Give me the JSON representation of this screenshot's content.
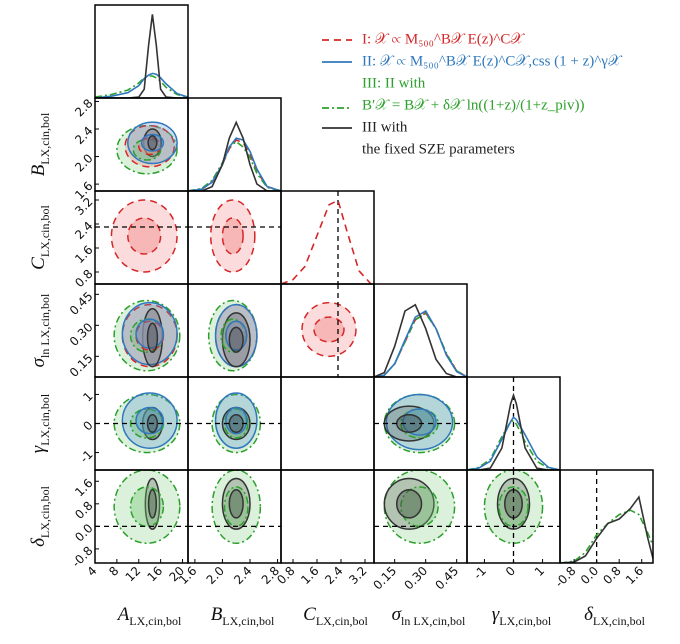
{
  "chart_data": {
    "type": "corner",
    "series": [
      {
        "name": "I: 𝒳 ∝ M₅₀₀^B𝒳 E(z)^C𝒳",
        "color": "#d62728",
        "dash": "7,5"
      },
      {
        "name": "II: 𝒳 ∝ M₅₀₀^B𝒳 E(z)^C𝒳,css (1 + z)^γ𝒳",
        "color": "#2f78bd",
        "dash": "none"
      },
      {
        "name": "III: II with",
        "relation": "B′𝒳 = B𝒳 + δ𝒳 ln((1+z)/(1+z_piv))",
        "color": "#2ca02c",
        "dash": "7,3,2,3"
      },
      {
        "name": [
          "III with",
          "the fixed SZE parameters"
        ],
        "color": "#333333",
        "dash": "none"
      }
    ],
    "params": [
      {
        "symbol": "A",
        "sub": "LX,cin,bol",
        "lim": [
          4,
          21
        ],
        "ticks": [
          4,
          8,
          12,
          16,
          20
        ],
        "reference": null
      },
      {
        "symbol": "B",
        "sub": "LX,cin,bol",
        "lim": [
          1.5,
          2.85
        ],
        "ticks": [
          1.6,
          {
            "value": 2,
            "label": "2.0"
          },
          2.4,
          2.8
        ],
        "reference": null
      },
      {
        "symbol": "C",
        "sub": "LX,cin,bol",
        "lim": [
          0.4,
          3.5
        ],
        "ticks": [
          0.8,
          1.6,
          2.4,
          3.2
        ],
        "reference": 2.3
      },
      {
        "symbol": "σ",
        "sub": "ln LX,cin,bol",
        "lim": [
          0.05,
          0.5
        ],
        "ticks": [
          0.15,
          {
            "value": 0.3,
            "label": "0.30"
          },
          0.45
        ],
        "reference": null
      },
      {
        "symbol": "γ",
        "sub": "LX,cin,bol",
        "lim": [
          -1.6,
          1.6
        ],
        "ticks": [
          -1,
          0,
          1
        ],
        "reference": 0
      },
      {
        "symbol": "δ",
        "sub": "LX,cin,bol",
        "lim": [
          -1.3,
          2.0
        ],
        "ticks": [
          -0.8,
          {
            "value": 0,
            "label": "0.0"
          },
          0.8,
          1.6
        ],
        "reference": 0
      }
    ],
    "diagonals": [
      {
        "grid": [
          4,
          7,
          10,
          12,
          13,
          13.8,
          14.5,
          15.2,
          16,
          17,
          19,
          21
        ],
        "curves": [
          {
            "series": 2,
            "values": [
              0.01,
              0.04,
              0.09,
              0.17,
              0.23,
              0.25,
              0.25,
              0.23,
              0.19,
              0.12,
              0.04,
              0.01
            ]
          },
          {
            "series": 1,
            "values": [
              0,
              0.02,
              0.06,
              0.14,
              0.22,
              0.26,
              0.28,
              0.27,
              0.23,
              0.16,
              0.05,
              0.01
            ]
          },
          {
            "series": 3,
            "values": [
              0,
              0,
              0,
              0.01,
              0.1,
              0.6,
              0.95,
              0.6,
              0.1,
              0.01,
              0,
              0
            ]
          }
        ]
      },
      {
        "grid": [
          1.5,
          1.7,
          1.85,
          2.0,
          2.1,
          2.2,
          2.3,
          2.4,
          2.5,
          2.65,
          2.85
        ],
        "curves": [
          {
            "series": 0,
            "values": [
              0,
              0.02,
              0.1,
              0.3,
              0.48,
              0.58,
              0.55,
              0.42,
              0.22,
              0.05,
              0
            ]
          },
          {
            "series": 2,
            "values": [
              0,
              0.03,
              0.12,
              0.32,
              0.5,
              0.56,
              0.5,
              0.38,
              0.2,
              0.04,
              0
            ]
          },
          {
            "series": 1,
            "values": [
              0,
              0.02,
              0.1,
              0.3,
              0.5,
              0.6,
              0.58,
              0.45,
              0.25,
              0.05,
              0
            ]
          },
          {
            "series": 3,
            "values": [
              0,
              0,
              0.05,
              0.3,
              0.6,
              0.78,
              0.6,
              0.3,
              0.08,
              0,
              0
            ]
          }
        ]
      },
      {
        "grid": [
          0.4,
          0.8,
          1.2,
          1.6,
          2.0,
          2.3,
          2.6,
          3.0,
          3.4
        ],
        "curves": [
          {
            "series": 0,
            "values": [
              0,
              0.05,
              0.2,
              0.55,
              0.9,
              0.95,
              0.6,
              0.15,
              0
            ]
          }
        ]
      },
      {
        "grid": [
          0.05,
          0.1,
          0.15,
          0.2,
          0.25,
          0.3,
          0.35,
          0.4,
          0.45,
          0.5
        ],
        "curves": [
          {
            "series": 0,
            "values": [
              0,
              0.02,
              0.15,
              0.4,
              0.65,
              0.73,
              0.55,
              0.26,
              0.07,
              0
            ]
          },
          {
            "series": 2,
            "values": [
              0,
              0.02,
              0.15,
              0.4,
              0.65,
              0.72,
              0.55,
              0.27,
              0.07,
              0
            ]
          },
          {
            "series": 1,
            "values": [
              0,
              0.02,
              0.15,
              0.42,
              0.68,
              0.75,
              0.55,
              0.25,
              0.06,
              0
            ]
          },
          {
            "series": 3,
            "values": [
              0,
              0.05,
              0.35,
              0.75,
              0.82,
              0.55,
              0.2,
              0.04,
              0,
              0
            ]
          }
        ]
      },
      {
        "grid": [
          -1.6,
          -1.2,
          -0.8,
          -0.4,
          -0.1,
          0,
          0.1,
          0.4,
          0.8,
          1.2,
          1.6
        ],
        "curves": [
          {
            "series": 2,
            "values": [
              0,
              0.03,
              0.12,
              0.38,
              0.55,
              0.56,
              0.52,
              0.32,
              0.1,
              0.02,
              0
            ]
          },
          {
            "series": 1,
            "values": [
              0,
              0.02,
              0.1,
              0.35,
              0.55,
              0.6,
              0.57,
              0.4,
              0.15,
              0.03,
              0
            ]
          },
          {
            "series": 3,
            "values": [
              0,
              0,
              0.02,
              0.25,
              0.75,
              0.85,
              0.75,
              0.25,
              0.02,
              0,
              0
            ]
          }
        ]
      },
      {
        "grid": [
          -1.3,
          -0.8,
          -0.4,
          0,
          0.4,
          0.8,
          1.2,
          1.5,
          1.8,
          2.0
        ],
        "curves": [
          {
            "series": 2,
            "values": [
              0,
              0.02,
              0.12,
              0.32,
              0.45,
              0.55,
              0.6,
              0.55,
              0.35,
              0.2
            ]
          },
          {
            "series": 3,
            "values": [
              0,
              0.01,
              0.08,
              0.28,
              0.45,
              0.5,
              0.62,
              0.75,
              0.3,
              0.05
            ]
          }
        ]
      }
    ],
    "contours": [
      {
        "x_param": 0,
        "y_param": 1,
        "blobs": [
          {
            "series": 2,
            "center": [
              13.5,
              2.1
            ],
            "r1": [
              2.5,
              0.15
            ],
            "r2": [
              5.5,
              0.35
            ]
          },
          {
            "series": 0,
            "center": [
              14,
              2.15
            ],
            "r1": [
              2,
              0.12
            ],
            "r2": [
              4.5,
              0.3
            ]
          },
          {
            "series": 1,
            "center": [
              14.5,
              2.2
            ],
            "r1": [
              2,
              0.12
            ],
            "r2": [
              4.5,
              0.3
            ]
          },
          {
            "series": 3,
            "center": [
              14.5,
              2.2
            ],
            "r1": [
              0.8,
              0.1
            ],
            "r2": [
              1.6,
              0.2
            ]
          }
        ]
      },
      {
        "x_param": 0,
        "y_param": 2,
        "blobs": [
          {
            "series": 0,
            "center": [
              13,
              2.0
            ],
            "r1": [
              3,
              0.6
            ],
            "r2": [
              6,
              1.2
            ]
          }
        ]
      },
      {
        "x_param": 1,
        "y_param": 2,
        "blobs": [
          {
            "series": 0,
            "center": [
              2.15,
              2.0
            ],
            "r1": [
              0.15,
              0.6
            ],
            "r2": [
              0.32,
              1.2
            ]
          }
        ]
      },
      {
        "x_param": 0,
        "y_param": 3,
        "blobs": [
          {
            "series": 2,
            "center": [
              13.5,
              0.25
            ],
            "r1": [
              3,
              0.08
            ],
            "r2": [
              6,
              0.17
            ]
          },
          {
            "series": 0,
            "center": [
              14,
              0.25
            ],
            "r1": [
              2.5,
              0.07
            ],
            "r2": [
              5,
              0.15
            ]
          },
          {
            "series": 1,
            "center": [
              14,
              0.26
            ],
            "r1": [
              2.5,
              0.07
            ],
            "r2": [
              5,
              0.15
            ]
          },
          {
            "series": 3,
            "center": [
              14.5,
              0.24
            ],
            "r1": [
              0.9,
              0.07
            ],
            "r2": [
              1.8,
              0.14
            ]
          }
        ]
      },
      {
        "x_param": 1,
        "y_param": 3,
        "blobs": [
          {
            "series": 2,
            "center": [
              2.15,
              0.25
            ],
            "r1": [
              0.17,
              0.08
            ],
            "r2": [
              0.35,
              0.17
            ]
          },
          {
            "series": 0,
            "center": [
              2.2,
              0.25
            ],
            "r1": [
              0.15,
              0.07
            ],
            "r2": [
              0.3,
              0.15
            ]
          },
          {
            "series": 1,
            "center": [
              2.2,
              0.25
            ],
            "r1": [
              0.15,
              0.07
            ],
            "r2": [
              0.3,
              0.15
            ]
          },
          {
            "series": 3,
            "center": [
              2.2,
              0.23
            ],
            "r1": [
              0.1,
              0.06
            ],
            "r2": [
              0.2,
              0.13
            ]
          }
        ]
      },
      {
        "x_param": 2,
        "y_param": 3,
        "blobs": [
          {
            "series": 0,
            "center": [
              2.0,
              0.28
            ],
            "r1": [
              0.5,
              0.06
            ],
            "r2": [
              0.9,
              0.13
            ]
          }
        ]
      },
      {
        "x_param": 0,
        "y_param": 4,
        "blobs": [
          {
            "series": 2,
            "center": [
              13.5,
              0
            ],
            "r1": [
              3,
              0.5
            ],
            "r2": [
              6,
              1.0
            ]
          },
          {
            "series": 1,
            "center": [
              14,
              0.1
            ],
            "r1": [
              2.5,
              0.45
            ],
            "r2": [
              5,
              0.95
            ]
          },
          {
            "series": 3,
            "center": [
              14.5,
              0
            ],
            "r1": [
              0.9,
              0.3
            ],
            "r2": [
              1.8,
              0.55
            ]
          }
        ]
      },
      {
        "x_param": 1,
        "y_param": 4,
        "blobs": [
          {
            "series": 2,
            "center": [
              2.2,
              0
            ],
            "r1": [
              0.17,
              0.5
            ],
            "r2": [
              0.35,
              1.0
            ]
          },
          {
            "series": 1,
            "center": [
              2.2,
              0.1
            ],
            "r1": [
              0.15,
              0.45
            ],
            "r2": [
              0.3,
              0.95
            ]
          },
          {
            "series": 3,
            "center": [
              2.2,
              0
            ],
            "r1": [
              0.1,
              0.3
            ],
            "r2": [
              0.2,
              0.55
            ]
          }
        ]
      },
      {
        "x_param": 3,
        "y_param": 4,
        "blobs": [
          {
            "series": 2,
            "center": [
              0.27,
              0
            ],
            "r1": [
              0.09,
              0.5
            ],
            "r2": [
              0.17,
              1.0
            ]
          },
          {
            "series": 1,
            "center": [
              0.27,
              0.05
            ],
            "r1": [
              0.08,
              0.45
            ],
            "r2": [
              0.16,
              0.95
            ]
          },
          {
            "series": 3,
            "center": [
              0.22,
              0
            ],
            "r1": [
              0.06,
              0.3
            ],
            "r2": [
              0.12,
              0.6
            ]
          }
        ]
      },
      {
        "x_param": 0,
        "y_param": 5,
        "blobs": [
          {
            "series": 2,
            "center": [
              13.5,
              0.7
            ],
            "r1": [
              3,
              0.7
            ],
            "r2": [
              6,
              1.3
            ]
          },
          {
            "series": 3,
            "center": [
              14.5,
              0.8
            ],
            "r1": [
              0.7,
              0.5
            ],
            "r2": [
              1.3,
              0.9
            ]
          }
        ]
      },
      {
        "x_param": 1,
        "y_param": 5,
        "blobs": [
          {
            "series": 2,
            "center": [
              2.2,
              0.7
            ],
            "r1": [
              0.17,
              0.7
            ],
            "r2": [
              0.35,
              1.3
            ]
          },
          {
            "series": 3,
            "center": [
              2.2,
              0.8
            ],
            "r1": [
              0.1,
              0.5
            ],
            "r2": [
              0.2,
              0.9
            ]
          }
        ]
      },
      {
        "x_param": 3,
        "y_param": 5,
        "blobs": [
          {
            "series": 2,
            "center": [
              0.27,
              0.7
            ],
            "r1": [
              0.09,
              0.7
            ],
            "r2": [
              0.17,
              1.3
            ]
          },
          {
            "series": 3,
            "center": [
              0.22,
              0.8
            ],
            "r1": [
              0.06,
              0.5
            ],
            "r2": [
              0.12,
              0.9
            ]
          }
        ]
      },
      {
        "x_param": 4,
        "y_param": 5,
        "blobs": [
          {
            "series": 2,
            "center": [
              0,
              0.7
            ],
            "r1": [
              0.5,
              0.7
            ],
            "r2": [
              1.0,
              1.3
            ]
          },
          {
            "series": 3,
            "center": [
              0,
              0.8
            ],
            "r1": [
              0.3,
              0.5
            ],
            "r2": [
              0.55,
              0.9
            ]
          }
        ]
      }
    ]
  }
}
